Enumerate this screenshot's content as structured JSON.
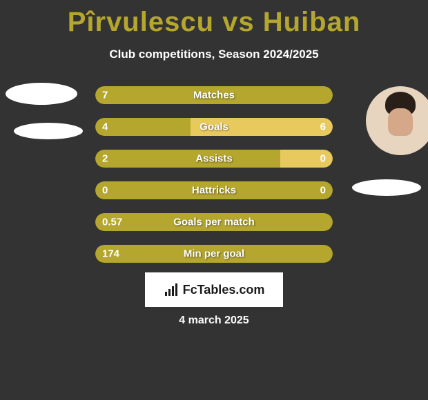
{
  "header": {
    "title": "Pîrvulescu vs Huiban",
    "subtitle": "Club competitions, Season 2024/2025"
  },
  "colors": {
    "accent": "#b5a72d",
    "accent_light": "#e8c95e",
    "background": "#333333",
    "text_on_bar": "#ffffff"
  },
  "stats": [
    {
      "label": "Matches",
      "left_value": "7",
      "right_value": "",
      "left_width": 39,
      "right_width": 61,
      "left_color": "#b5a72d",
      "right_color": "#b5a72d",
      "show_right_value": false
    },
    {
      "label": "Goals",
      "left_value": "4",
      "right_value": "6",
      "left_width": 40,
      "right_width": 60,
      "left_color": "#b5a72d",
      "right_color": "#e8c95e",
      "show_right_value": true
    },
    {
      "label": "Assists",
      "left_value": "2",
      "right_value": "0",
      "left_width": 78,
      "right_width": 22,
      "left_color": "#b5a72d",
      "right_color": "#e8c95e",
      "show_right_value": true
    },
    {
      "label": "Hattricks",
      "left_value": "0",
      "right_value": "0",
      "left_width": 50,
      "right_width": 50,
      "left_color": "#b5a72d",
      "right_color": "#b5a72d",
      "show_right_value": true
    },
    {
      "label": "Goals per match",
      "left_value": "0.57",
      "right_value": "",
      "left_width": 100,
      "right_width": 0,
      "left_color": "#b5a72d",
      "right_color": "#b5a72d",
      "show_right_value": false
    },
    {
      "label": "Min per goal",
      "left_value": "174",
      "right_value": "",
      "left_width": 100,
      "right_width": 0,
      "left_color": "#b5a72d",
      "right_color": "#b5a72d",
      "show_right_value": false
    }
  ],
  "brand": {
    "text": "FcTables.com"
  },
  "footer": {
    "date": "4 march 2025"
  }
}
